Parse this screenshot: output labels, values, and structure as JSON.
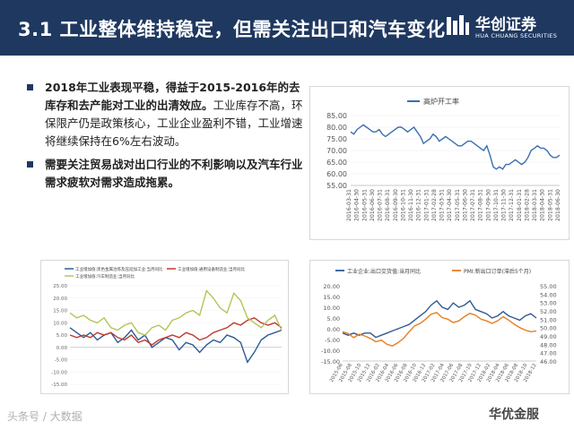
{
  "header": {
    "title": "3.1 工业整体维持稳定，但需关注出口和汽车变化",
    "logo_cn": "华创证券",
    "logo_en": "HUA CHUANG SECURITIES"
  },
  "bullets": [
    {
      "bold": "2018年工业表现平稳，得益于2015-2016年的去库存和去产能对工业的出清效应。",
      "normal": "工业库存不高，环保限产仍是政策核心，工业企业盈利不错，工业增速将继续保持在6%左右波动。"
    },
    {
      "bold": "需要关注贸易战对出口行业的不利影响以及汽车行业需求疲软对需求造成拖累。",
      "normal": ""
    }
  ],
  "watermark_left": "头条号 / 大数据",
  "watermark_right": "华优金服",
  "colors": {
    "header_bg": "#1f3860",
    "blue": "#3a6fb0",
    "red": "#c0392b",
    "gray": "#888888",
    "olive": "#b5c45a",
    "orange": "#e67e22",
    "navy": "#2e5a96"
  },
  "chart_data": [
    {
      "type": "line",
      "series": [
        {
          "name": "高炉开工率",
          "values": [
            78,
            77,
            79,
            80,
            81,
            80,
            79,
            78,
            78,
            79,
            77,
            76,
            77,
            78,
            79,
            80,
            80,
            79,
            78,
            79,
            80,
            78,
            76,
            73,
            74,
            75,
            77,
            76,
            74,
            75,
            76,
            75,
            74,
            73,
            72,
            72,
            73,
            74,
            74,
            73,
            72,
            71,
            70,
            72,
            68,
            63,
            62,
            63,
            62,
            64,
            64,
            65,
            66,
            65,
            64,
            65,
            67,
            70,
            71,
            72,
            71,
            71,
            70,
            68,
            67,
            67,
            68
          ]
        }
      ],
      "x_tick_labels": [
        "2016-03-31",
        "2016-04-30",
        "2016-05-31",
        "2016-06-30",
        "2016-07-31",
        "2016-08-31",
        "2016-09-30",
        "2016-10-31",
        "2016-11-30",
        "2016-12-31",
        "2017-01-31",
        "2017-02-28",
        "2017-03-31",
        "2017-04-30",
        "2017-05-31",
        "2017-06-30",
        "2017-07-31",
        "2017-08-31",
        "2017-09-30",
        "2017-10-31",
        "2017-11-30",
        "2017-12-31",
        "2018-01-31",
        "2018-02-28",
        "2018-03-31",
        "2018-04-30",
        "2018-05-31",
        "2018-06-30"
      ],
      "ylim": [
        55,
        85
      ],
      "y_ticks": [
        "55.00",
        "60.00",
        "65.00",
        "70.00",
        "75.00",
        "80.00",
        "85.00"
      ],
      "legend": "top-left"
    },
    {
      "type": "line",
      "series": [
        {
          "name": "工业增加值:黑色金属冶炼及压延加工业:当月同比",
          "values": [
            8,
            6,
            4,
            6,
            3,
            5,
            6,
            2,
            4,
            7,
            3,
            5,
            0,
            2,
            4,
            3,
            -1,
            2,
            1,
            -2,
            1,
            3,
            2,
            5,
            4,
            2,
            -6,
            -2,
            3,
            5,
            6,
            7
          ]
        },
        {
          "name": "工业增加值:通用设备制造业:当月同比",
          "values": [
            5,
            4,
            5,
            4,
            6,
            5,
            6,
            4,
            3,
            5,
            2,
            3,
            1,
            3,
            4,
            5,
            4,
            6,
            5,
            3,
            4,
            6,
            7,
            8,
            10,
            9,
            11,
            12,
            10,
            9,
            10,
            8
          ]
        },
        {
          "name": "工业增加值:汽车制造业:当月同比",
          "values": [
            14,
            12,
            13,
            11,
            10,
            12,
            8,
            7,
            9,
            10,
            6,
            5,
            8,
            9,
            7,
            11,
            12,
            14,
            15,
            13,
            23,
            20,
            16,
            14,
            22,
            19,
            12,
            10,
            8,
            11,
            13,
            7
          ]
        }
      ],
      "ylim": [
        -15,
        25
      ],
      "y_ticks": [
        "-15.00",
        "-10.00",
        "-5.00",
        "0.00",
        "5.00",
        "10.00",
        "15.00",
        "20.00",
        "25.00"
      ],
      "legend": "top"
    },
    {
      "type": "line",
      "series": [
        {
          "name": "工业企业:出口交货值:当月同比",
          "values": [
            -2,
            -3,
            -2,
            -3,
            -2,
            -2,
            -4,
            -3,
            -2,
            -1,
            0,
            1,
            2,
            4,
            6,
            8,
            11,
            13,
            10,
            9,
            12,
            10,
            11,
            13,
            9,
            8,
            7,
            5,
            6,
            8,
            6,
            5,
            4,
            6,
            7,
            5
          ]
        },
        {
          "name": "PMI:新出口订单(滞后5个月)",
          "values": [
            49.5,
            49.3,
            48.8,
            49.2,
            49,
            48.7,
            48.3,
            48.5,
            48,
            47.8,
            48.2,
            48.7,
            49.5,
            50.2,
            50.5,
            51,
            51.6,
            51.8,
            51.2,
            51,
            50.6,
            50.8,
            51.3,
            51.7,
            51.5,
            51,
            50.8,
            50.5,
            50.8,
            51.3,
            50.9,
            50.4,
            50,
            49.7,
            49.5,
            49.6
          ]
        }
      ],
      "x_tick_labels": [
        "2015-06",
        "2015-08",
        "2015-10",
        "2015-12",
        "2016-02",
        "2016-04",
        "2016-06",
        "2016-08",
        "2016-10",
        "2016-12",
        "2017-02",
        "2017-04",
        "2017-06",
        "2017-08",
        "2017-10",
        "2017-12",
        "2018-02",
        "2018-04",
        "2018-06",
        "2018-08",
        "2018-10",
        "2018-12"
      ],
      "ylim_left": [
        -15,
        20
      ],
      "ylim_right": [
        46,
        55
      ],
      "y_ticks_left": [
        "-15.00",
        "-10.00",
        "-5.00",
        "0.00",
        "5.00",
        "10.00",
        "15.00",
        "20.00"
      ],
      "y_ticks_right": [
        "46.00",
        "47.00",
        "48.00",
        "49.00",
        "50.00",
        "51.00",
        "52.00",
        "53.00",
        "54.00",
        "55.00"
      ],
      "legend": "top"
    }
  ]
}
